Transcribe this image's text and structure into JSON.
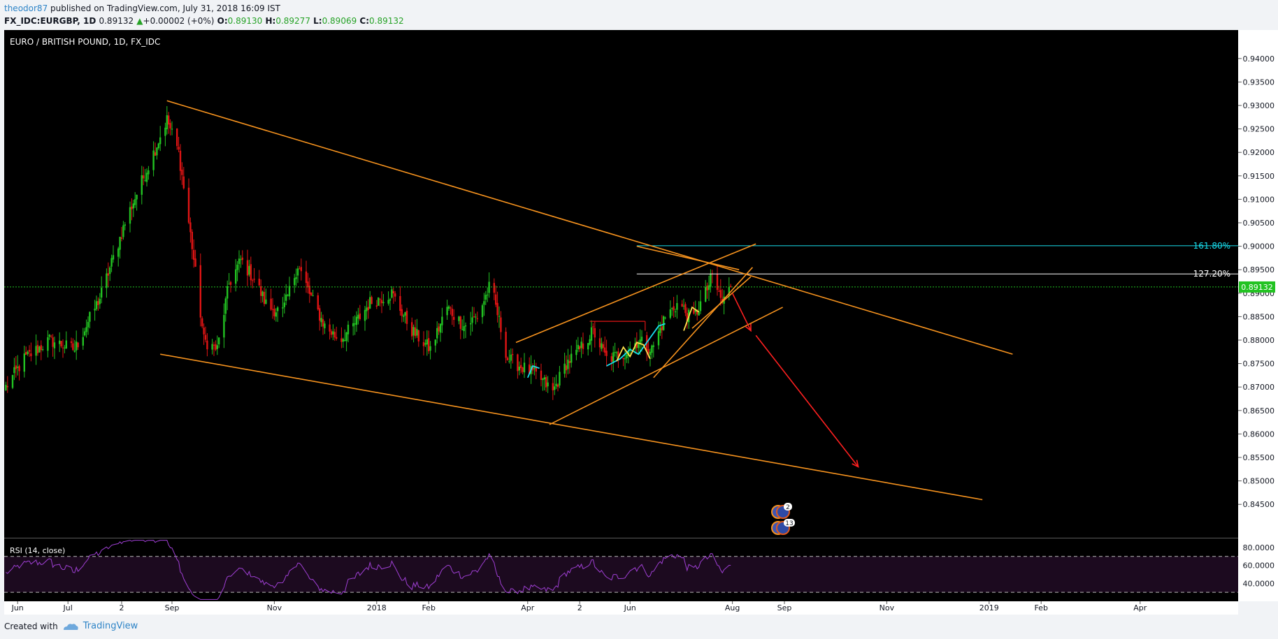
{
  "header": {
    "author": "theodor87",
    "published": "published on TradingView.com, July 31, 2018 16:09 IST",
    "symbol": "FX_IDC:EURGBP, 1D",
    "last": "0.89132",
    "change": "+0.00002 (+0%)",
    "o_label": "O:",
    "o": "0.89130",
    "h_label": "H:",
    "h": "0.89277",
    "l_label": "L:",
    "l": "0.89069",
    "c_label": "C:",
    "c": "0.89132"
  },
  "footer": {
    "created_with": "Created with",
    "brand": "TradingView"
  },
  "colors": {
    "bg": "#000000",
    "up": "#22c322",
    "down": "#e01414",
    "trend": "#f7931e",
    "fib161": "#18e0f0",
    "fib127": "#ffffff",
    "rsi": "#9f3fd4",
    "priceLine": "#22c322"
  },
  "chart_data": {
    "type": "candlestick",
    "title": "EURO / BRITISH POUND, 1D, FX_IDC",
    "ylim": [
      0.8415,
      0.9445
    ],
    "y_ticks": [
      "0.94000",
      "0.93500",
      "0.93000",
      "0.92500",
      "0.92000",
      "0.91500",
      "0.91000",
      "0.90500",
      "0.90000",
      "0.89500",
      "0.89000",
      "0.88500",
      "0.88000",
      "0.87500",
      "0.87000",
      "0.86500",
      "0.86000",
      "0.85500",
      "0.85000",
      "0.84500"
    ],
    "x_ticks": [
      "Jun",
      "Jul",
      "2",
      "Sep",
      "Nov",
      "2018",
      "Feb",
      "Apr",
      "2",
      "Jun",
      "Aug",
      "Sep",
      "Nov",
      "2019",
      "Feb",
      "Apr"
    ],
    "price_anchors": [
      [
        "2017-05-25",
        0.87
      ],
      [
        "2017-06-05",
        0.876
      ],
      [
        "2017-06-20",
        0.88
      ],
      [
        "2017-07-05",
        0.878
      ],
      [
        "2017-07-20",
        0.889
      ],
      [
        "2017-08-05",
        0.906
      ],
      [
        "2017-08-20",
        0.919
      ],
      [
        "2017-08-29",
        0.927
      ],
      [
        "2017-09-05",
        0.92
      ],
      [
        "2017-09-13",
        0.9
      ],
      [
        "2017-09-20",
        0.88
      ],
      [
        "2017-09-28",
        0.878
      ],
      [
        "2017-10-05",
        0.892
      ],
      [
        "2017-10-12",
        0.897
      ],
      [
        "2017-10-20",
        0.893
      ],
      [
        "2017-10-28",
        0.887
      ],
      [
        "2017-11-06",
        0.886
      ],
      [
        "2017-11-15",
        0.896
      ],
      [
        "2017-11-23",
        0.889
      ],
      [
        "2017-12-01",
        0.883
      ],
      [
        "2017-12-10",
        0.88
      ],
      [
        "2017-12-18",
        0.883
      ],
      [
        "2017-12-28",
        0.888
      ],
      [
        "2018-01-10",
        0.89
      ],
      [
        "2018-01-22",
        0.882
      ],
      [
        "2018-02-02",
        0.878
      ],
      [
        "2018-02-12",
        0.887
      ],
      [
        "2018-02-22",
        0.883
      ],
      [
        "2018-03-02",
        0.885
      ],
      [
        "2018-03-10",
        0.892
      ],
      [
        "2018-03-20",
        0.876
      ],
      [
        "2018-03-30",
        0.874
      ],
      [
        "2018-04-08",
        0.872
      ],
      [
        "2018-04-16",
        0.869
      ],
      [
        "2018-04-24",
        0.875
      ],
      [
        "2018-05-02",
        0.878
      ],
      [
        "2018-05-10",
        0.882
      ],
      [
        "2018-05-18",
        0.876
      ],
      [
        "2018-05-28",
        0.877
      ],
      [
        "2018-06-06",
        0.88
      ],
      [
        "2018-06-14",
        0.878
      ],
      [
        "2018-06-22",
        0.885
      ],
      [
        "2018-06-30",
        0.888
      ],
      [
        "2018-07-08",
        0.884
      ],
      [
        "2018-07-16",
        0.89
      ],
      [
        "2018-07-20",
        0.8935
      ],
      [
        "2018-07-26",
        0.888
      ],
      [
        "2018-07-31",
        0.8913
      ]
    ],
    "rsi_label": "RSI (14, close)",
    "rsi_ylim": [
      20,
      90
    ],
    "rsi_ticks": [
      "80.0000",
      "60.0000",
      "40.0000"
    ],
    "rsi_bands": [
      70,
      30
    ],
    "last_price_label": "0.89132",
    "fib_levels": [
      {
        "label": "161.80%",
        "price": 0.9001
      },
      {
        "label": "127.20%",
        "price": 0.8941
      }
    ],
    "trendlines": [
      [
        [
          "2017-08-29",
          0.931
        ],
        [
          "2019-01-15",
          0.877
        ]
      ],
      [
        [
          "2017-08-25",
          0.877
        ],
        [
          "2018-12-28",
          0.846
        ]
      ],
      [
        [
          "2018-03-25",
          0.8795
        ],
        [
          "2018-08-15",
          0.9005
        ]
      ],
      [
        [
          "2018-04-14",
          0.862
        ],
        [
          "2018-08-31",
          0.887
        ]
      ],
      [
        [
          "2018-06-15",
          0.872
        ],
        [
          "2018-08-13",
          0.8955
        ]
      ],
      [
        [
          "2018-07-08",
          0.8825
        ],
        [
          "2018-08-12",
          0.8935
        ]
      ],
      [
        [
          "2018-06-05",
          0.9
        ],
        [
          "2018-08-05",
          0.895
        ]
      ]
    ],
    "arrows": [
      [
        [
          "2018-08-01",
          0.89
        ],
        [
          "2018-08-12",
          0.882
        ]
      ],
      [
        [
          "2018-08-15",
          0.881
        ],
        [
          "2018-10-15",
          0.853
        ]
      ]
    ],
    "overlay_lines": [
      [
        [
          "2018-05-08",
          0.884
        ],
        [
          "2018-06-10",
          0.884
        ]
      ],
      [
        [
          "2018-06-10",
          0.884
        ],
        [
          "2018-06-10",
          0.882
        ]
      ]
    ],
    "zigzag_cyan": [
      [
        [
          "2018-05-18",
          0.8745
        ],
        [
          "2018-05-26",
          0.876
        ],
        [
          "2018-06-01",
          0.878
        ],
        [
          "2018-06-06",
          0.877
        ],
        [
          "2018-06-12",
          0.88
        ],
        [
          "2018-06-18",
          0.883
        ],
        [
          "2018-06-22",
          0.8835
        ]
      ],
      [
        [
          "2018-04-01",
          0.872
        ],
        [
          "2018-04-04",
          0.8745
        ],
        [
          "2018-04-08",
          0.874
        ]
      ]
    ],
    "zigzag_yellow": [
      [
        [
          "2018-05-24",
          0.8755
        ],
        [
          "2018-05-28",
          0.8785
        ],
        [
          "2018-06-01",
          0.8765
        ],
        [
          "2018-06-05",
          0.8795
        ],
        [
          "2018-06-09",
          0.879
        ],
        [
          "2018-06-13",
          0.876
        ]
      ],
      [
        [
          "2018-07-03",
          0.882
        ],
        [
          "2018-07-08",
          0.887
        ],
        [
          "2018-07-12",
          0.886
        ]
      ]
    ],
    "idea_badges": [
      "2",
      "13"
    ]
  }
}
